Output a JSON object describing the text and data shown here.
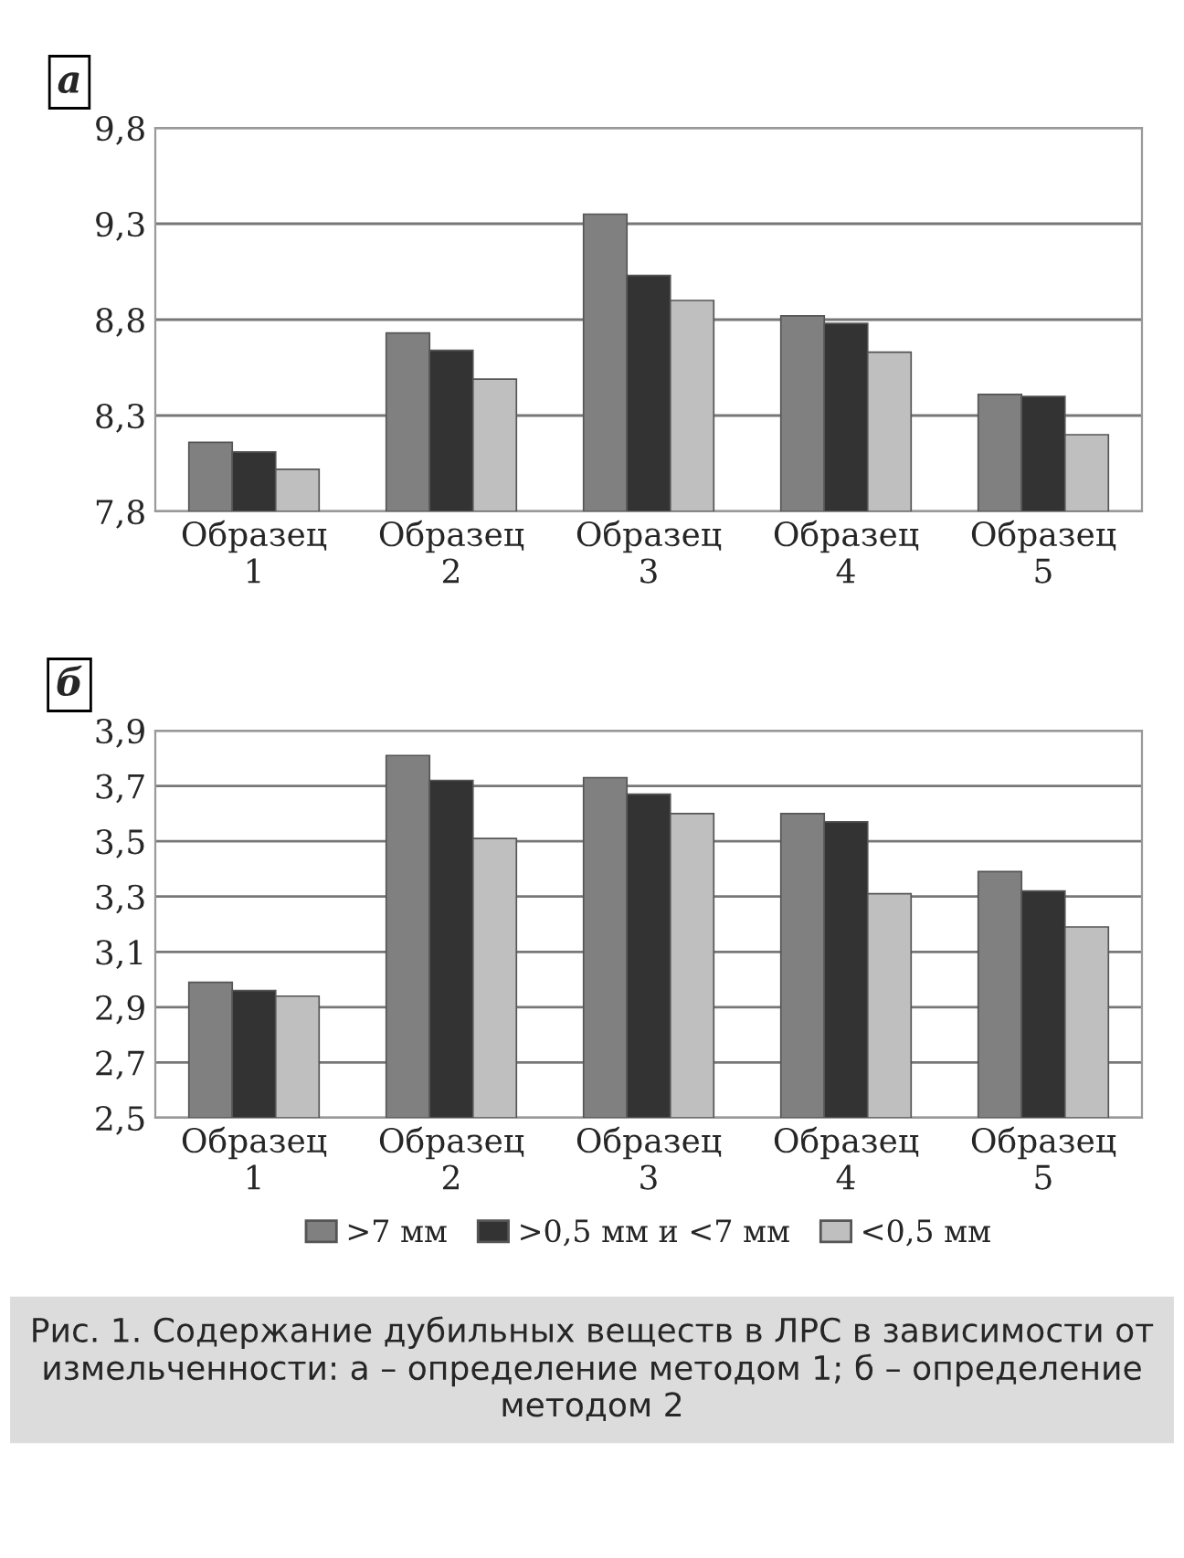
{
  "chart_data": [
    {
      "type": "bar",
      "title": "а",
      "categories": [
        "Образец 1",
        "Образец 2",
        "Образец 3",
        "Образец 4",
        "Образец 5"
      ],
      "series": [
        {
          "color": "#808080",
          "values": [
            8.16,
            8.73,
            9.35,
            8.82,
            8.41
          ]
        },
        {
          "color": "#333333",
          "values": [
            8.11,
            8.64,
            9.03,
            8.78,
            8.4
          ]
        },
        {
          "color": "#bfbfbf",
          "values": [
            8.02,
            8.49,
            8.9,
            8.63,
            8.2
          ]
        }
      ],
      "ylim": [
        7.8,
        9.8
      ],
      "yticks": [
        {
          "value": 7.8,
          "label": "7,8"
        },
        {
          "value": 8.3,
          "label": "8,3"
        },
        {
          "value": 8.8,
          "label": "8,8"
        },
        {
          "value": 9.3,
          "label": "9,3"
        },
        {
          "value": 9.8,
          "label": "9,8"
        }
      ],
      "grid": "y"
    },
    {
      "type": "bar",
      "title": "б",
      "categories": [
        "Образец 1",
        "Образец 2",
        "Образец 3",
        "Образец 4",
        "Образец 5"
      ],
      "series": [
        {
          "name": ">7 мм",
          "color": "#808080",
          "values": [
            2.99,
            3.81,
            3.73,
            3.6,
            3.39
          ]
        },
        {
          "name": ">0,5 мм и <7 мм",
          "color": "#333333",
          "values": [
            2.96,
            3.72,
            3.67,
            3.57,
            3.32
          ]
        },
        {
          "name": "<0,5 мм",
          "color": "#bfbfbf",
          "values": [
            2.94,
            3.51,
            3.6,
            3.31,
            3.19
          ]
        }
      ],
      "ylim": [
        2.5,
        3.9
      ],
      "yticks": [
        {
          "value": 2.5,
          "label": "2,5"
        },
        {
          "value": 2.7,
          "label": "2,7"
        },
        {
          "value": 2.9,
          "label": "2,9"
        },
        {
          "value": 3.1,
          "label": "3,1"
        },
        {
          "value": 3.3,
          "label": "3,3"
        },
        {
          "value": 3.5,
          "label": "3,5"
        },
        {
          "value": 3.7,
          "label": "3,7"
        },
        {
          "value": 3.9,
          "label": "3,9"
        }
      ],
      "grid": "y",
      "legend": "bottom",
      "annotations": [
        "Рис. 1. Содержание дубильных веществ в ЛРС в зависимости от измельченности: а – определение методом 1; б – определение методом 2"
      ]
    }
  ]
}
